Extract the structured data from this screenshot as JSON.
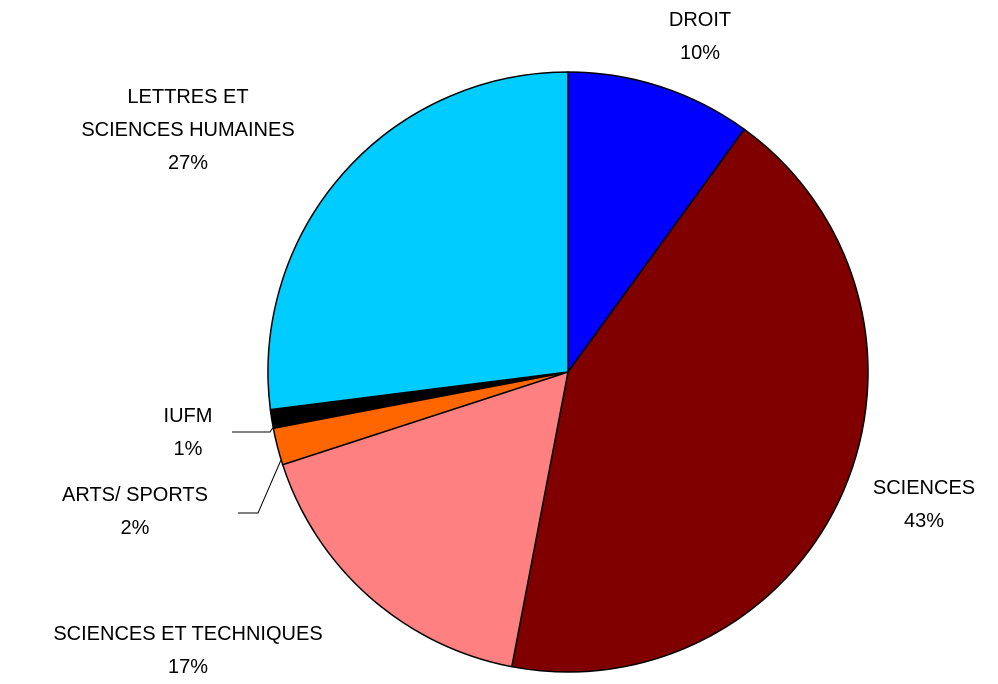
{
  "chart_data": {
    "type": "pie",
    "categories": [
      "DROIT",
      "SCIENCES",
      "SCIENCES ET TECHNIQUES",
      "ARTS/ SPORTS",
      "IUFM",
      "LETTRES ET\nSCIENCES HUMAINES"
    ],
    "values": [
      10,
      43,
      17,
      2,
      1,
      27
    ],
    "value_labels": [
      "10%",
      "43%",
      "17%",
      "2%",
      "1%",
      "27%"
    ],
    "colors": [
      "#0000ff",
      "#800000",
      "#ff8080",
      "#ff6600",
      "#000000",
      "#00ccff"
    ]
  }
}
